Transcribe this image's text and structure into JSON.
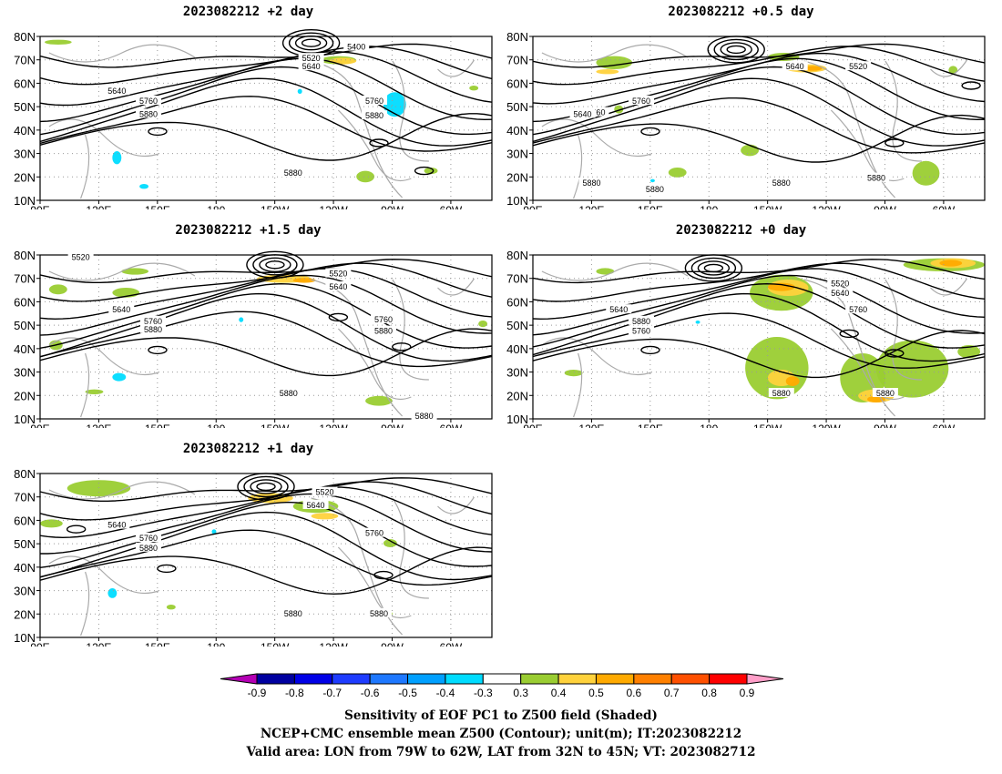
{
  "panels": [
    {
      "id": "p2",
      "title": "2023082212 +2 day",
      "contour_labels": [
        "5400",
        "5520",
        "5640",
        "5640",
        "5760",
        "5880",
        "5760",
        "5880",
        "5880"
      ]
    },
    {
      "id": "p05",
      "title": "2023082212 +0.5 day",
      "contour_labels": [
        "5640",
        "5520",
        "5760",
        "5640",
        "5760",
        "5880",
        "5880",
        "5880",
        "5880"
      ]
    },
    {
      "id": "p15",
      "title": "2023082212 +1.5 day",
      "contour_labels": [
        "5520",
        "5520",
        "5640",
        "5640",
        "5760",
        "5880",
        "5760",
        "5880",
        "5880",
        "5880"
      ]
    },
    {
      "id": "p0",
      "title": "2023082212 +0 day",
      "contour_labels": [
        "5520",
        "5640",
        "5640",
        "5760",
        "5880",
        "5760",
        "5880",
        "5880"
      ]
    },
    {
      "id": "p1",
      "title": "2023082212 +1 day",
      "contour_labels": [
        "5520",
        "5640",
        "5640",
        "5760",
        "5880",
        "5760",
        "5880",
        "5880"
      ]
    }
  ],
  "axes": {
    "lat_labels": [
      "80N",
      "70N",
      "60N",
      "50N",
      "40N",
      "30N",
      "20N",
      "10N"
    ],
    "lon_labels": [
      "90E",
      "120E",
      "150E",
      "180",
      "150W",
      "120W",
      "90W",
      "60W"
    ]
  },
  "colorbar": {
    "ticks": [
      "-0.9",
      "-0.8",
      "-0.7",
      "-0.6",
      "-0.5",
      "-0.4",
      "-0.3",
      "0.3",
      "0.4",
      "0.5",
      "0.6",
      "0.7",
      "0.8",
      "0.9"
    ],
    "colors": [
      "#0000a0",
      "#0000e6",
      "#1e3cff",
      "#1e78ff",
      "#00a0ff",
      "#00dcff",
      "#ffffff",
      "#9acd32",
      "#ffd23c",
      "#ffaa00",
      "#ff8000",
      "#ff5000",
      "#ff0000"
    ],
    "end_low": "#b400b4",
    "end_high": "#ff9ec8"
  },
  "footer": {
    "line1": "Sensitivity of EOF PC1 to Z500 field (Shaded)",
    "line2": "NCEP+CMC ensemble mean Z500 (Contour); unit(m); IT:2023082212",
    "line3": "Valid area: LON from 79W to 62W, LAT from 32N to 45N; VT: 2023082712"
  }
}
